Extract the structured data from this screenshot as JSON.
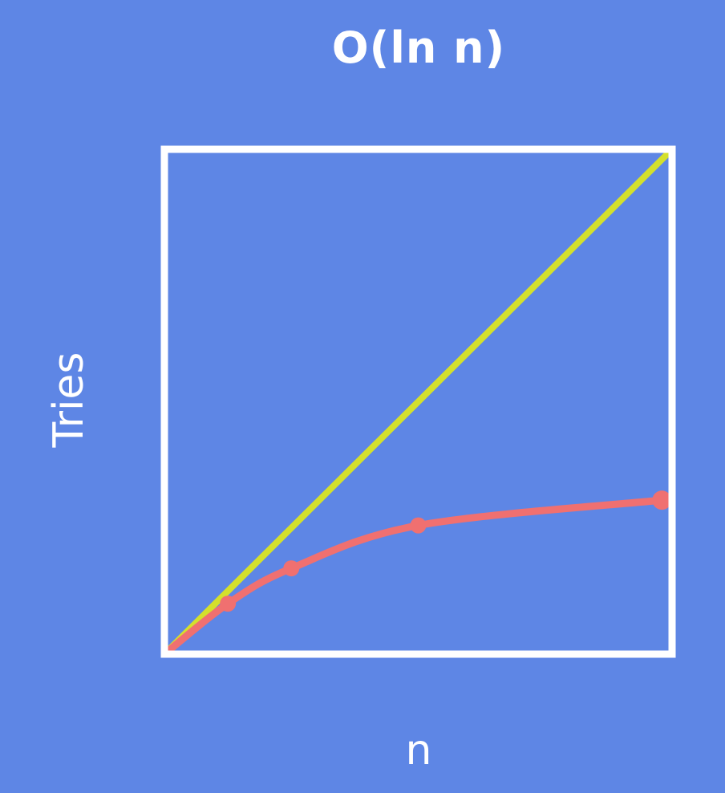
{
  "chart_data": {
    "type": "line",
    "title": "O(ln n)",
    "xlabel": "n",
    "ylabel": "Tries",
    "xlim": [
      0,
      1
    ],
    "ylim": [
      0,
      1
    ],
    "grid": false,
    "series": [
      {
        "color": "#d4e02c",
        "x": [
          0,
          1
        ],
        "y": [
          0,
          1
        ]
      },
      {
        "color": "#f07070",
        "x": [
          0,
          0.125,
          0.25,
          0.5,
          0.98
        ],
        "y": [
          0,
          0.1,
          0.17,
          0.255,
          0.305
        ],
        "markers": [
          0.125,
          0.25,
          0.5,
          0.98
        ]
      }
    ],
    "colors": {
      "background": "#5e86e5",
      "frame": "#ffffff"
    }
  }
}
